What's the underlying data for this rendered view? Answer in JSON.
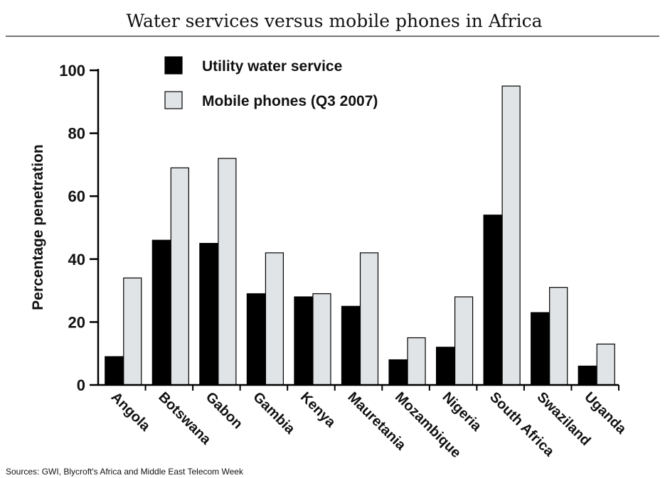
{
  "chart_data": {
    "type": "bar",
    "title": "Water services versus mobile phones in Africa",
    "ylabel": "Percentage penetration",
    "xlabel": "",
    "ylim": [
      0,
      100
    ],
    "yticks": [
      0,
      20,
      40,
      60,
      80,
      100
    ],
    "categories": [
      "Angola",
      "Botswana",
      "Gabon",
      "Gambia",
      "Kenya",
      "Mauretania",
      "Mozambique",
      "Nigeria",
      "South Africa",
      "Swaziland",
      "Uganda"
    ],
    "series": [
      {
        "name": "Utility water service",
        "color": "#000000",
        "values": [
          9,
          46,
          45,
          29,
          28,
          25,
          8,
          12,
          54,
          23,
          6
        ]
      },
      {
        "name": "Mobile phones (Q3 2007)",
        "color": "#e1e4e6",
        "values": [
          34,
          69,
          72,
          42,
          29,
          42,
          15,
          28,
          95,
          31,
          13
        ]
      }
    ],
    "legend": "top",
    "grid": false,
    "source": "Sources: GWI, Blycroft's Africa and Middle East Telecom Week"
  }
}
